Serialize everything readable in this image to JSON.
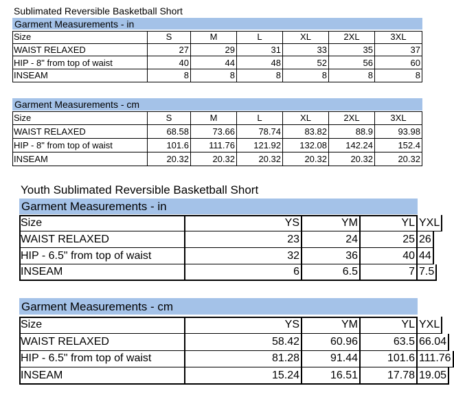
{
  "sections": [
    {
      "title": "Sublimated Reversible Basketball Short",
      "tables": [
        {
          "caption": "Garment Measurements - in",
          "header": [
            "Size",
            "S",
            "M",
            "L",
            "XL",
            "2XL",
            "3XL"
          ],
          "rows": [
            [
              "WAIST RELAXED",
              27,
              29,
              31,
              33,
              35,
              37
            ],
            [
              "HIP - 8\" from top of waist",
              40,
              44,
              48,
              52,
              56,
              60
            ],
            [
              "INSEAM",
              8,
              8,
              8,
              8,
              8,
              8
            ]
          ]
        },
        {
          "caption": "Garment Measurements - cm",
          "header": [
            "Size",
            "S",
            "M",
            "L",
            "XL",
            "2XL",
            "3XL"
          ],
          "rows": [
            [
              "WAIST RELAXED",
              68.58,
              73.66,
              78.74,
              83.82,
              88.9,
              93.98
            ],
            [
              "HIP - 8\" from top of waist",
              101.6,
              111.76,
              121.92,
              132.08,
              142.24,
              152.4
            ],
            [
              "INSEAM",
              20.32,
              20.32,
              20.32,
              20.32,
              20.32,
              20.32
            ]
          ]
        }
      ]
    },
    {
      "title": "Youth Sublimated Reversible Basketball Short",
      "tables": [
        {
          "caption": "Garment Measurements - in",
          "header": [
            "Size",
            "YS",
            "YM",
            "YL",
            "YXL"
          ],
          "rows": [
            [
              "WAIST RELAXED",
              23,
              24,
              25,
              26
            ],
            [
              "HIP -  6.5\" from top of waist",
              32,
              36,
              40,
              44
            ],
            [
              "INSEAM",
              6,
              6.5,
              7,
              7.5
            ]
          ]
        },
        {
          "caption": "Garment Measurements - cm",
          "header": [
            "Size",
            "YS",
            "YM",
            "YL",
            "YXL"
          ],
          "rows": [
            [
              "WAIST RELAXED",
              58.42,
              60.96,
              63.5,
              66.04
            ],
            [
              "HIP - 6.5\"  from top of waist",
              81.28,
              91.44,
              101.6,
              111.76
            ],
            [
              "INSEAM",
              15.24,
              16.51,
              17.78,
              19.05
            ]
          ]
        }
      ]
    }
  ]
}
